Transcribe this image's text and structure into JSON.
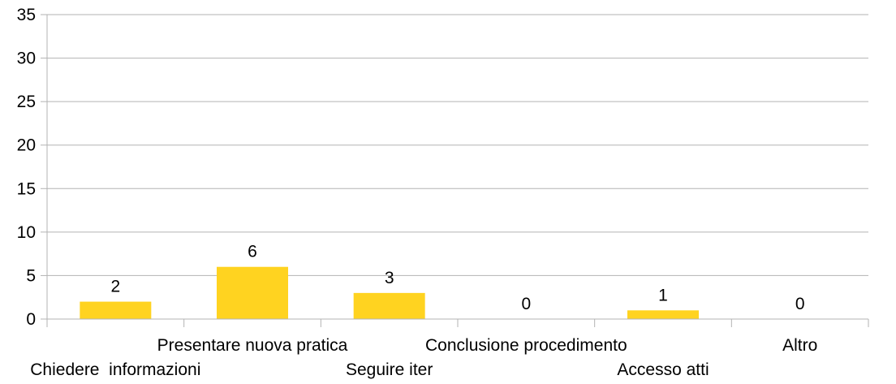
{
  "chart_data": {
    "type": "bar",
    "title": "",
    "xlabel": "",
    "ylabel": "",
    "categories": [
      "Chiedere  informazioni",
      "Presentare nuova pratica",
      "Seguire iter",
      "Conclusione procedimento",
      "Accesso atti",
      "Altro"
    ],
    "values": [
      2,
      6,
      3,
      0,
      1,
      0
    ],
    "data_labels": [
      "2",
      "6",
      "3",
      "0",
      "1",
      "0"
    ],
    "ylim": [
      0,
      35
    ],
    "yticks": [
      0,
      5,
      10,
      15,
      20,
      25,
      30,
      35
    ],
    "ytick_labels": [
      "0",
      "5",
      "10",
      "15",
      "20",
      "25",
      "30",
      "35"
    ],
    "grid": true,
    "legend": "none",
    "colors": {
      "bar": "#ffd320",
      "grid": "#b3b3b3",
      "axis": "#b3b3b3",
      "text": "#000000"
    }
  }
}
